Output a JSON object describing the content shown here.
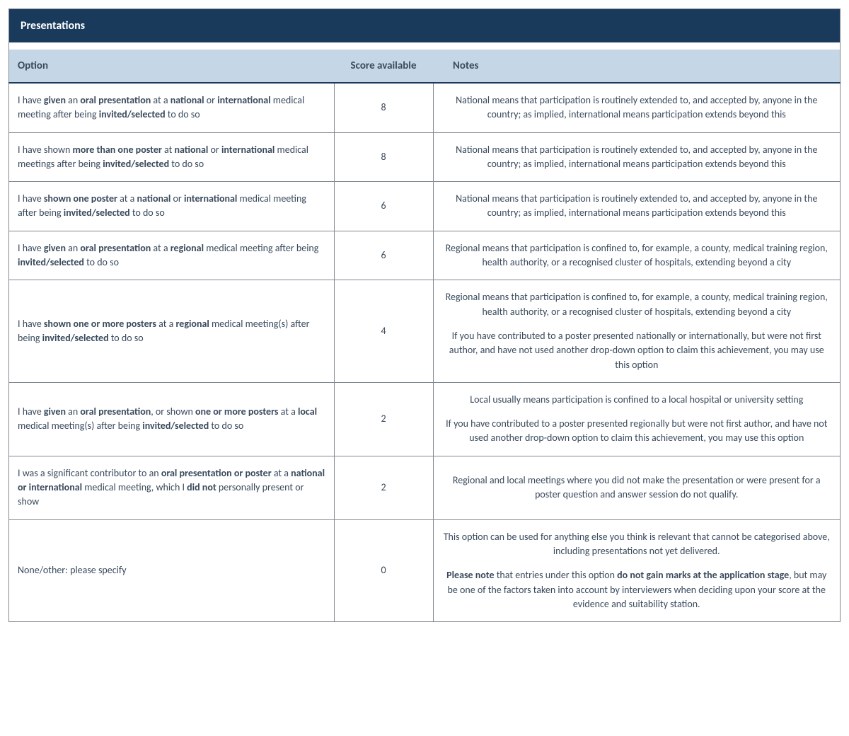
{
  "colors": {
    "title_bg": "#1a3a5c",
    "header_bg": "#c5d7e6",
    "border": "#808890",
    "text": "#3a4a5c"
  },
  "title": "Presentations",
  "columns": {
    "option": "Option",
    "score": "Score available",
    "notes": "Notes"
  },
  "rows": [
    {
      "option_html": "I have <b>given</b> an <b>oral presentation</b> at a <b>national</b> or <b>international</b> medical meeting after being <b>invited/selected</b> to do so",
      "score": "8",
      "notes_html": "National means that participation is routinely extended to, and accepted by, anyone in the country; as implied, international means participation extends beyond this"
    },
    {
      "option_html": "I have shown <b>more than one poster</b> at <b>national</b> or <b>international</b> medical meetings after being <b>invited/selected</b> to do so",
      "score": "8",
      "notes_html": "National means that participation is routinely extended to, and accepted by, anyone in the country; as implied, international means participation extends beyond this"
    },
    {
      "option_html": "I have <b>shown one poster</b> at a <b>national</b> or <b>international</b> medical meeting after being <b>invited/selected</b> to do so",
      "score": "6",
      "notes_html": "National means that participation is routinely extended to, and accepted by, anyone in the country; as implied, international means participation extends beyond this"
    },
    {
      "option_html": "I have <b>given</b> an <b>oral presentation</b> at a <b>regional</b> medical meeting after being <b>invited/selected</b> to do so",
      "score": "6",
      "notes_html": "Regional means that participation is confined to, for example, a county, medical training region, health authority, or a recognised cluster of hospitals, extending beyond a city"
    },
    {
      "option_html": "I have <b>shown one or more posters</b> at a <b>regional</b> medical meeting(s) after being <b>invited/selected</b> to do so",
      "score": "4",
      "notes_html": "<p>Regional means that participation is confined to, for example, a county, medical training region, health authority, or a recognised cluster of hospitals, extending beyond a city</p><p>If you have contributed to a poster presented nationally or internationally, but were not first author, and have not used another drop-down option to claim this achievement, you may use this option</p>"
    },
    {
      "option_html": "I have <b>given</b> an <b>oral presentation</b>, or shown <b>one or more posters</b> at a <b>local</b> medical meeting(s) after being <b>invited/selected</b> to do so",
      "score": "2",
      "notes_html": "<p>Local usually means participation is confined to a local hospital or university setting</p><p>If you have contributed to a poster presented regionally but were not first author, and have not used another drop-down option to claim this achievement, you may use this option</p>"
    },
    {
      "option_html": "I was a significant contributor to an <b>oral presentation or poster</b> at a <b>national or international</b> medical meeting, which I <b>did not</b> personally present or show",
      "score": "2",
      "notes_html": "Regional and local meetings where you did not make the presentation or were present for a poster question and answer session do not qualify."
    },
    {
      "option_html": "None/other: please specify",
      "score": "0",
      "notes_html": "<p>This option can be used for anything else you think is relevant that cannot be categorised above, including presentations not yet delivered.</p><p><b>Please note</b> that entries under this option <b>do not gain marks at the application stage</b>, but may be one of the factors taken into account by interviewers when deciding upon your score at the evidence and suitability station.</p>"
    }
  ]
}
